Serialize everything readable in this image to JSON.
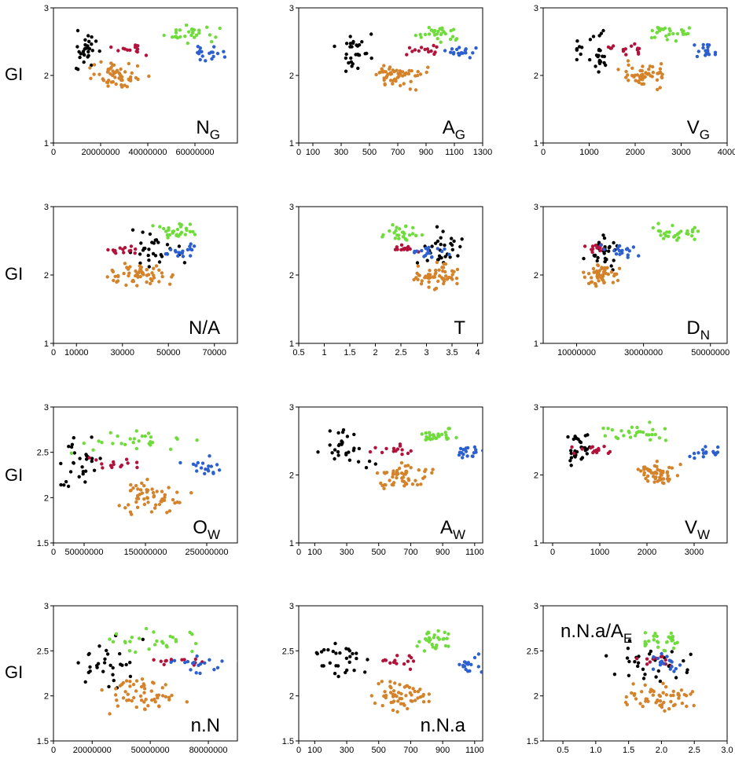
{
  "figure": {
    "y_label": "GI"
  },
  "series": [
    {
      "name": "black",
      "color": "#000000"
    },
    {
      "name": "red",
      "color": "#b3123a"
    },
    {
      "name": "orange",
      "color": "#d4832b"
    },
    {
      "name": "green",
      "color": "#6fdc3c"
    },
    {
      "name": "blue",
      "color": "#2c5fcf"
    }
  ],
  "chart_data": [
    {
      "type": "scatter",
      "title": "N_G",
      "title_main": "N",
      "title_sub": "G",
      "label_pos": "bottom-right",
      "xlim": [
        0,
        78000000
      ],
      "ylim": [
        1,
        3
      ],
      "xticks": [
        {
          "v": 0,
          "t": "0"
        },
        {
          "v": 20000000,
          "t": "20000000"
        },
        {
          "v": 40000000,
          "t": "40000000"
        },
        {
          "v": 60000000,
          "t": "60000000"
        }
      ],
      "yticks": [
        {
          "v": 1,
          "t": "1"
        },
        {
          "v": 2,
          "t": "2"
        },
        {
          "v": 3,
          "t": "3"
        }
      ],
      "x_center": [
        14000000,
        32000000,
        27000000,
        57000000,
        65000000
      ],
      "x_spread": [
        12000000,
        12000000,
        15000000,
        18000000,
        10000000
      ]
    },
    {
      "type": "scatter",
      "title": "A_G",
      "title_main": "A",
      "title_sub": "G",
      "label_pos": "bottom-right",
      "xlim": [
        0,
        1300
      ],
      "ylim": [
        1,
        3
      ],
      "xticks": [
        {
          "v": 0,
          "t": "0"
        },
        {
          "v": 100,
          "t": "100"
        },
        {
          "v": 300,
          "t": "300"
        },
        {
          "v": 500,
          "t": "500"
        },
        {
          "v": 700,
          "t": "700"
        },
        {
          "v": 900,
          "t": "900"
        },
        {
          "v": 1100,
          "t": "1100"
        },
        {
          "v": 1300,
          "t": "1300"
        }
      ],
      "yticks": [
        {
          "v": 1,
          "t": "1"
        },
        {
          "v": 2,
          "t": "2"
        },
        {
          "v": 3,
          "t": "3"
        }
      ],
      "x_center": [
        390,
        870,
        700,
        1000,
        1150
      ],
      "x_spread": [
        180,
        180,
        260,
        200,
        170
      ]
    },
    {
      "type": "scatter",
      "title": "V_G",
      "title_main": "V",
      "title_sub": "G",
      "label_pos": "bottom-right",
      "xlim": [
        0,
        4000
      ],
      "ylim": [
        1,
        3
      ],
      "xticks": [
        {
          "v": 0,
          "t": "0"
        },
        {
          "v": 1000,
          "t": "1000"
        },
        {
          "v": 2000,
          "t": "2000"
        },
        {
          "v": 3000,
          "t": "3000"
        },
        {
          "v": 4000,
          "t": "4000"
        }
      ],
      "yticks": [
        {
          "v": 1,
          "t": "1"
        },
        {
          "v": 2,
          "t": "2"
        },
        {
          "v": 3,
          "t": "3"
        }
      ],
      "x_center": [
        1100,
        1900,
        2200,
        2700,
        3500
      ],
      "x_spread": [
        600,
        600,
        700,
        700,
        450
      ]
    },
    {
      "type": "scatter",
      "title": "N/A",
      "title_main": "N/A",
      "title_sub": "",
      "label_pos": "bottom-right",
      "xlim": [
        0,
        80000
      ],
      "ylim": [
        1,
        3
      ],
      "xticks": [
        {
          "v": 0,
          "t": "0"
        },
        {
          "v": 10000,
          "t": "10000"
        },
        {
          "v": 30000,
          "t": "30000"
        },
        {
          "v": 50000,
          "t": "50000"
        },
        {
          "v": 70000,
          "t": "70000"
        }
      ],
      "yticks": [
        {
          "v": 1,
          "t": "1"
        },
        {
          "v": 2,
          "t": "2"
        },
        {
          "v": 3,
          "t": "3"
        }
      ],
      "x_center": [
        42000,
        30000,
        38000,
        55000,
        55000
      ],
      "x_spread": [
        18000,
        12000,
        22000,
        14000,
        10000
      ]
    },
    {
      "type": "scatter",
      "title": "T",
      "title_main": "T",
      "title_sub": "",
      "label_pos": "bottom-right",
      "xlim": [
        0.5,
        4.1
      ],
      "ylim": [
        1,
        3
      ],
      "xticks": [
        {
          "v": 0.5,
          "t": "0.5"
        },
        {
          "v": 1,
          "t": "1"
        },
        {
          "v": 1.5,
          "t": "1.5"
        },
        {
          "v": 2,
          "t": "2"
        },
        {
          "v": 2.5,
          "t": "2.5"
        },
        {
          "v": 3,
          "t": "3"
        },
        {
          "v": 3.5,
          "t": "3.5"
        },
        {
          "v": 4,
          "t": "4"
        }
      ],
      "yticks": [
        {
          "v": 1,
          "t": "1"
        },
        {
          "v": 2,
          "t": "2"
        },
        {
          "v": 3,
          "t": "3"
        }
      ],
      "x_center": [
        3.3,
        2.6,
        3.2,
        2.5,
        3.1
      ],
      "x_spread": [
        0.6,
        0.3,
        0.6,
        0.5,
        0.5
      ]
    },
    {
      "type": "scatter",
      "title": "D_N",
      "title_main": "D",
      "title_sub": "N",
      "label_pos": "bottom-right",
      "xlim": [
        0,
        55000000
      ],
      "ylim": [
        1,
        3
      ],
      "xticks": [
        {
          "v": 10000000,
          "t": "10000000"
        },
        {
          "v": 30000000,
          "t": "30000000"
        },
        {
          "v": 50000000,
          "t": "50000000"
        }
      ],
      "yticks": [
        {
          "v": 1,
          "t": "1"
        },
        {
          "v": 2,
          "t": "2"
        },
        {
          "v": 3,
          "t": "3"
        }
      ],
      "x_center": [
        18000000,
        16000000,
        17000000,
        40000000,
        24000000
      ],
      "x_spread": [
        7000000,
        5000000,
        7000000,
        12000000,
        8000000
      ]
    },
    {
      "type": "scatter",
      "title": "O_W",
      "title_main": "O",
      "title_sub": "W",
      "label_pos": "bottom-right",
      "xlim": [
        0,
        300000000
      ],
      "ylim": [
        1.5,
        3
      ],
      "xticks": [
        {
          "v": 0,
          "t": "0"
        },
        {
          "v": 50000000,
          "t": "50000000"
        },
        {
          "v": 150000000,
          "t": "150000000"
        },
        {
          "v": 250000000,
          "t": "250000000"
        }
      ],
      "yticks": [
        {
          "v": 1.5,
          "t": "1.5"
        },
        {
          "v": 2,
          "t": "2"
        },
        {
          "v": 2.5,
          "t": "2.5"
        },
        {
          "v": 3,
          "t": "3"
        }
      ],
      "x_center": [
        45000000,
        100000000,
        160000000,
        130000000,
        250000000
      ],
      "x_spread": [
        50000000,
        60000000,
        80000000,
        130000000,
        60000000
      ]
    },
    {
      "type": "scatter",
      "title": "A_W",
      "title_main": "A",
      "title_sub": "W",
      "label_pos": "bottom-right",
      "xlim": [
        0,
        1150
      ],
      "ylim": [
        1,
        3
      ],
      "xticks": [
        {
          "v": 0,
          "t": "0"
        },
        {
          "v": 100,
          "t": "100"
        },
        {
          "v": 300,
          "t": "300"
        },
        {
          "v": 500,
          "t": "500"
        },
        {
          "v": 700,
          "t": "700"
        },
        {
          "v": 900,
          "t": "900"
        },
        {
          "v": 1100,
          "t": "1100"
        }
      ],
      "yticks": [
        {
          "v": 1,
          "t": "1"
        },
        {
          "v": 2,
          "t": "2"
        },
        {
          "v": 3,
          "t": "3"
        }
      ],
      "x_center": [
        300,
        600,
        650,
        850,
        1050
      ],
      "x_spread": [
        250,
        200,
        240,
        160,
        120
      ]
    },
    {
      "type": "scatter",
      "title": "V_W",
      "title_main": "V",
      "title_sub": "W",
      "label_pos": "bottom-right",
      "xlim": [
        -200,
        3700
      ],
      "ylim": [
        1,
        3
      ],
      "xticks": [
        {
          "v": 0,
          "t": "0"
        },
        {
          "v": 1000,
          "t": "1000"
        },
        {
          "v": 2000,
          "t": "2000"
        },
        {
          "v": 3000,
          "t": "3000"
        }
      ],
      "yticks": [
        {
          "v": 1,
          "t": "1"
        },
        {
          "v": 2,
          "t": "2"
        },
        {
          "v": 3,
          "t": "3"
        }
      ],
      "x_center": [
        600,
        900,
        2200,
        1600,
        3200
      ],
      "x_spread": [
        450,
        600,
        700,
        1200,
        400
      ]
    },
    {
      "type": "scatter",
      "title": "n.N",
      "title_main": "n.N",
      "title_sub": "",
      "label_pos": "bottom-right",
      "xlim": [
        0,
        95000000
      ],
      "ylim": [
        1.5,
        3
      ],
      "xticks": [
        {
          "v": 0,
          "t": "0"
        },
        {
          "v": 20000000,
          "t": "20000000"
        },
        {
          "v": 50000000,
          "t": "50000000"
        },
        {
          "v": 80000000,
          "t": "80000000"
        }
      ],
      "yticks": [
        {
          "v": 1.5,
          "t": "1.5"
        },
        {
          "v": 2,
          "t": "2"
        },
        {
          "v": 2.5,
          "t": "2.5"
        },
        {
          "v": 3,
          "t": "3"
        }
      ],
      "x_center": [
        28000000,
        62000000,
        48000000,
        55000000,
        75000000
      ],
      "x_spread": [
        22000000,
        25000000,
        30000000,
        40000000,
        25000000
      ]
    },
    {
      "type": "scatter",
      "title": "n.N.a",
      "title_main": "n.N.a",
      "title_sub": "",
      "label_pos": "bottom-right",
      "xlim": [
        0,
        1150
      ],
      "ylim": [
        1.5,
        3
      ],
      "xticks": [
        {
          "v": 0,
          "t": "0"
        },
        {
          "v": 100,
          "t": "100"
        },
        {
          "v": 300,
          "t": "300"
        },
        {
          "v": 500,
          "t": "500"
        },
        {
          "v": 700,
          "t": "700"
        },
        {
          "v": 900,
          "t": "900"
        },
        {
          "v": 1100,
          "t": "1100"
        }
      ],
      "yticks": [
        {
          "v": 1.5,
          "t": "1.5"
        },
        {
          "v": 2,
          "t": "2"
        },
        {
          "v": 2.5,
          "t": "2.5"
        },
        {
          "v": 3,
          "t": "3"
        }
      ],
      "x_center": [
        300,
        600,
        650,
        850,
        1050
      ],
      "x_spread": [
        250,
        200,
        240,
        160,
        120
      ]
    },
    {
      "type": "scatter",
      "title": "n.N.a/A_E",
      "title_main": "n.N.a/A",
      "title_sub": "E",
      "label_pos": "top-left",
      "xlim": [
        0.2,
        3.0
      ],
      "ylim": [
        1.5,
        3
      ],
      "xticks": [
        {
          "v": 0.5,
          "t": "0.5"
        },
        {
          "v": 1.0,
          "t": "1.0"
        },
        {
          "v": 1.5,
          "t": "1.5"
        },
        {
          "v": 2.0,
          "t": "2.0"
        },
        {
          "v": 2.5,
          "t": "2.5"
        },
        {
          "v": 3.0,
          "t": "3.0"
        }
      ],
      "yticks": [
        {
          "v": 1.5,
          "t": "1.5"
        },
        {
          "v": 2,
          "t": "2"
        },
        {
          "v": 2.5,
          "t": "2.5"
        },
        {
          "v": 3,
          "t": "3"
        }
      ],
      "x_center": [
        1.9,
        1.9,
        2.0,
        2.0,
        2.1
      ],
      "x_spread": [
        1.0,
        0.5,
        0.9,
        0.4,
        0.4
      ]
    }
  ]
}
